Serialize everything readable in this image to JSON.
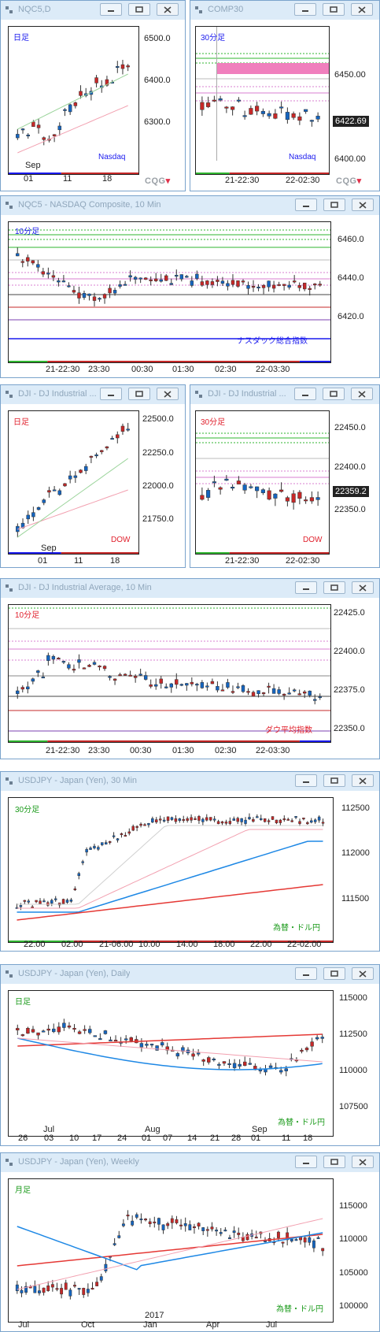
{
  "colors": {
    "up": "#1565c0",
    "down": "#c62828",
    "blue_lbl": "#1a1aee",
    "red_lbl": "#e0202c",
    "green_lbl": "#1a9a1a"
  },
  "brand": "CQG",
  "windows": {
    "w1": {
      "title": "NQC5,D",
      "panel": "日足",
      "instrument": "Nasdaq",
      "yticks": [
        "6500.0",
        "6400.0",
        "6300.0"
      ],
      "xticks": [
        "Sep",
        "01",
        "11",
        "18"
      ]
    },
    "w2": {
      "title": "COMP30",
      "panel": "30分足",
      "instrument": "Nasdaq",
      "yticks": [
        "6450.00",
        "6400.00"
      ],
      "last": "6422.69",
      "xticks": [
        "21-22:30",
        "22-02:30"
      ]
    },
    "w3": {
      "title": "NQC5 - NASDAQ Composite, 10 Min",
      "panel": "10分足",
      "instrument": "ナスダック総合指数",
      "yticks": [
        "6460.0",
        "6440.0",
        "6420.0"
      ],
      "xticks": [
        "21-22:30",
        "23:30",
        "00:30",
        "01:30",
        "02:30",
        "22-03:30"
      ]
    },
    "w4": {
      "title": "DJI - DJ Industrial ...",
      "panel": "日足",
      "instrument": "DOW",
      "yticks": [
        "22500.0",
        "22250.0",
        "22000.0",
        "21750.0"
      ],
      "xticks": [
        "Sep",
        "01",
        "11",
        "18"
      ]
    },
    "w5": {
      "title": "DJI - DJ Industrial ...",
      "panel": "30分足",
      "instrument": "DOW",
      "yticks": [
        "22450.0",
        "22400.0",
        "22350.0"
      ],
      "last": "22359.2",
      "xticks": [
        "21-22:30",
        "22-02:30"
      ]
    },
    "w6": {
      "title": "DJI - DJ Industrial Average, 10 Min",
      "panel": "10分足",
      "instrument": "ダウ平均指数",
      "yticks": [
        "22425.0",
        "22400.0",
        "22375.0",
        "22350.0"
      ],
      "xticks": [
        "21-22:30",
        "23:30",
        "00:30",
        "01:30",
        "02:30",
        "22-03:30"
      ]
    },
    "w7": {
      "title": "USDJPY - Japan (Yen), 30 Min",
      "panel": "30分足",
      "instrument": "為替・ドル円",
      "yticks": [
        "112500",
        "112000",
        "111500"
      ],
      "xticks": [
        "22:00",
        "02:00",
        "21-06:00",
        "10:00",
        "14:00",
        "18:00",
        "22:00",
        "22-02:00"
      ]
    },
    "w8": {
      "title": "USDJPY - Japan (Yen), Daily",
      "panel": "日足",
      "instrument": "為替・ドル円",
      "yticks": [
        "115000",
        "112500",
        "110000",
        "107500"
      ],
      "xticks": [
        "26",
        "03",
        "10",
        "17",
        "24",
        "01",
        "07",
        "14",
        "21",
        "28",
        "01",
        "11",
        "18"
      ],
      "months": [
        "Jul",
        "Aug",
        "Sep"
      ]
    },
    "w9": {
      "title": "USDJPY - Japan (Yen), Weekly",
      "panel": "月足",
      "instrument": "為替・ドル円",
      "yticks": [
        "115000",
        "110000",
        "105000",
        "100000"
      ],
      "xticks": [
        "Jul",
        "Oct",
        "Jan",
        "Apr",
        "Jul"
      ],
      "year": "2017"
    }
  }
}
